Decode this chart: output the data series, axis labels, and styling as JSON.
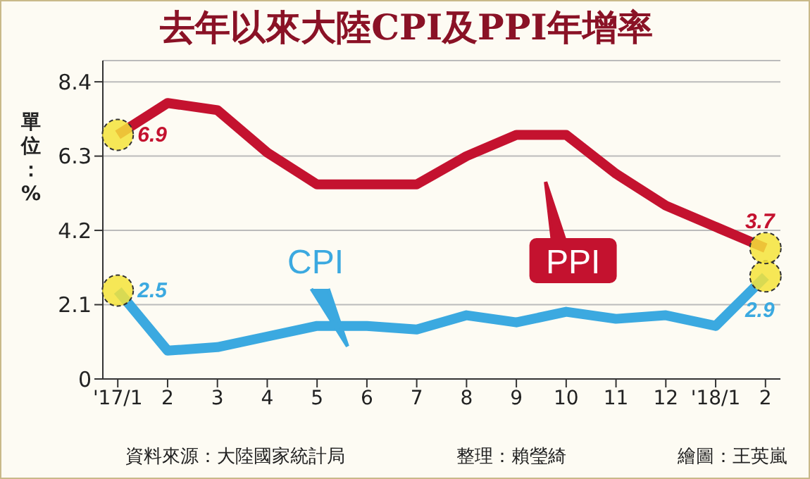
{
  "chart_data": {
    "type": "line",
    "title": "去年以來大陸CPI及PPI年增率",
    "ylabel": "單位：%",
    "categories": [
      "'17/1",
      "2",
      "3",
      "4",
      "5",
      "6",
      "7",
      "8",
      "9",
      "10",
      "11",
      "12",
      "'18/1",
      "2"
    ],
    "series": [
      {
        "name": "CPI",
        "color": "#3ba9e0",
        "values": [
          2.5,
          0.8,
          0.9,
          1.2,
          1.5,
          1.5,
          1.4,
          1.8,
          1.6,
          1.9,
          1.7,
          1.8,
          1.5,
          2.9
        ],
        "value_labels": [
          "2.5",
          null,
          null,
          null,
          null,
          null,
          null,
          null,
          null,
          null,
          null,
          null,
          null,
          "2.9"
        ]
      },
      {
        "name": "PPI",
        "color": "#c4122f",
        "values": [
          6.9,
          7.8,
          7.6,
          6.4,
          5.5,
          5.5,
          5.5,
          6.3,
          6.9,
          6.9,
          5.8,
          4.9,
          4.3,
          3.7
        ],
        "value_labels": [
          "6.9",
          null,
          null,
          null,
          null,
          null,
          null,
          null,
          null,
          null,
          null,
          null,
          null,
          "3.7"
        ]
      }
    ],
    "ylim": [
      0,
      9
    ],
    "yticks": [
      0,
      2.1,
      4.2,
      6.3,
      8.4
    ],
    "grid": "y",
    "legend": false,
    "marker": "none",
    "annotations": [
      "資料來源：大陸國家統計局",
      "整理：賴瑩綺",
      "繪圖：王英嵐"
    ]
  }
}
